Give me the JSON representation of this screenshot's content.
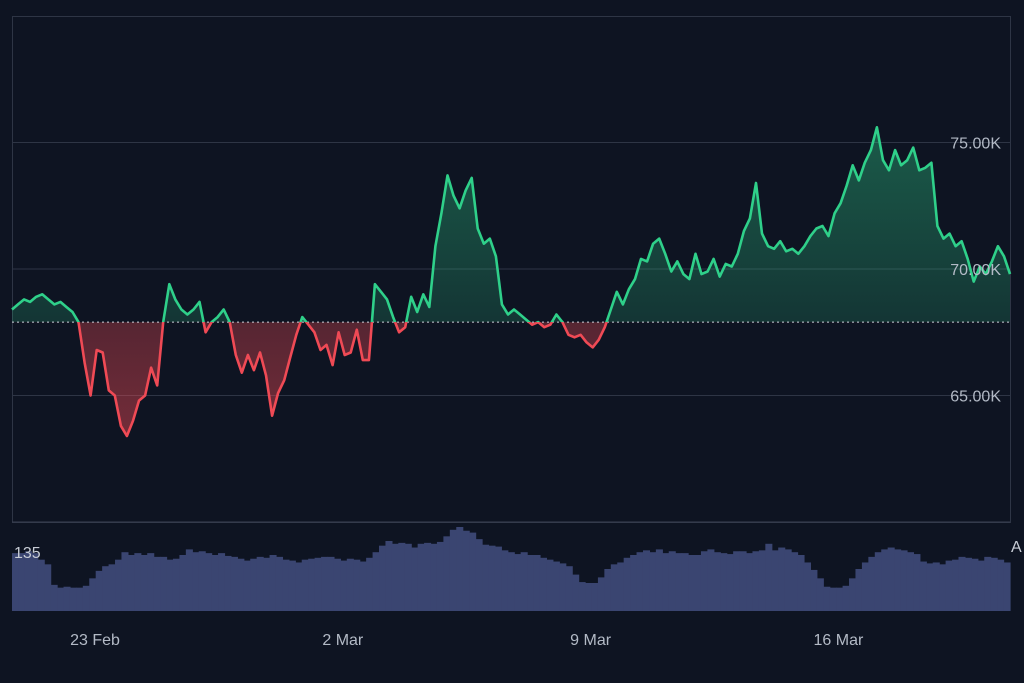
{
  "chart_data": {
    "type": "area",
    "title": "",
    "xlabel": "",
    "ylabel": "",
    "x_tick_labels": [
      "23 Feb",
      "2 Mar",
      "9 Mar",
      "16 Mar"
    ],
    "y_tick_labels": [
      "75.00K",
      "70.00K",
      "65.00K"
    ],
    "y_ticks": [
      75000,
      70000,
      65000
    ],
    "ylim": [
      60000,
      80000
    ],
    "baseline": 67900,
    "grid": true,
    "colors": {
      "background": "#0e1422",
      "up_line": "#2fd08a",
      "up_fill": "#2fd08a",
      "down_line": "#ef4a55",
      "down_fill": "#ef4a55",
      "volume": "#3a4571",
      "grid": "#2e3545",
      "baseline": "#cfd3dc"
    },
    "price_series": {
      "name": "",
      "points": [
        [
          "21 Feb",
          68400
        ],
        [
          "21 Feb",
          68600
        ],
        [
          "21 Feb",
          68800
        ],
        [
          "21 Feb",
          68700
        ],
        [
          "21 Feb",
          68900
        ],
        [
          "21 Feb",
          69000
        ],
        [
          "22 Feb",
          68800
        ],
        [
          "22 Feb",
          68600
        ],
        [
          "22 Feb",
          68700
        ],
        [
          "22 Feb",
          68500
        ],
        [
          "22 Feb",
          68300
        ],
        [
          "22 Feb",
          67900
        ],
        [
          "22 Feb",
          66300
        ],
        [
          "23 Feb",
          65000
        ],
        [
          "23 Feb",
          66800
        ],
        [
          "23 Feb",
          66700
        ],
        [
          "23 Feb",
          65200
        ],
        [
          "23 Feb",
          65000
        ],
        [
          "24 Feb",
          63800
        ],
        [
          "24 Feb",
          63400
        ],
        [
          "24 Feb",
          64000
        ],
        [
          "24 Feb",
          64800
        ],
        [
          "24 Feb",
          65000
        ],
        [
          "25 Feb",
          66100
        ],
        [
          "25 Feb",
          65400
        ],
        [
          "25 Feb",
          67900
        ],
        [
          "25 Feb",
          69400
        ],
        [
          "25 Feb",
          68800
        ],
        [
          "26 Feb",
          68400
        ],
        [
          "26 Feb",
          68200
        ],
        [
          "26 Feb",
          68400
        ],
        [
          "26 Feb",
          68700
        ],
        [
          "26 Feb",
          67500
        ],
        [
          "27 Feb",
          67900
        ],
        [
          "27 Feb",
          68100
        ],
        [
          "27 Feb",
          68400
        ],
        [
          "27 Feb",
          67900
        ],
        [
          "27 Feb",
          66600
        ],
        [
          "27 Feb",
          65900
        ],
        [
          "28 Feb",
          66600
        ],
        [
          "28 Feb",
          66000
        ],
        [
          "28 Feb",
          66700
        ],
        [
          "28 Feb",
          65800
        ],
        [
          "28 Feb",
          64200
        ],
        [
          "28 Feb",
          65100
        ],
        [
          "1 Mar",
          65600
        ],
        [
          "1 Mar",
          66500
        ],
        [
          "1 Mar",
          67400
        ],
        [
          "1 Mar",
          68100
        ],
        [
          "1 Mar",
          67800
        ],
        [
          "1 Mar",
          67500
        ],
        [
          "1 Mar",
          66800
        ],
        [
          "1 Mar",
          67000
        ],
        [
          "2 Mar",
          66200
        ],
        [
          "2 Mar",
          67500
        ],
        [
          "2 Mar",
          66600
        ],
        [
          "2 Mar",
          66700
        ],
        [
          "2 Mar",
          67600
        ],
        [
          "2 Mar",
          66400
        ],
        [
          "2 Mar",
          66400
        ],
        [
          "3 Mar",
          69400
        ],
        [
          "3 Mar",
          69100
        ],
        [
          "3 Mar",
          68800
        ],
        [
          "3 Mar",
          68100
        ],
        [
          "3 Mar",
          67500
        ],
        [
          "3 Mar",
          67700
        ],
        [
          "4 Mar",
          68900
        ],
        [
          "4 Mar",
          68300
        ],
        [
          "4 Mar",
          69000
        ],
        [
          "4 Mar",
          68500
        ],
        [
          "4 Mar",
          70900
        ],
        [
          "4 Mar",
          72200
        ],
        [
          "5 Mar",
          73700
        ],
        [
          "5 Mar",
          72900
        ],
        [
          "5 Mar",
          72400
        ],
        [
          "5 Mar",
          73100
        ],
        [
          "5 Mar",
          73600
        ],
        [
          "5 Mar",
          71600
        ],
        [
          "6 Mar",
          71000
        ],
        [
          "6 Mar",
          71200
        ],
        [
          "6 Mar",
          70500
        ],
        [
          "6 Mar",
          68600
        ],
        [
          "6 Mar",
          68200
        ],
        [
          "7 Mar",
          68400
        ],
        [
          "7 Mar",
          68200
        ],
        [
          "7 Mar",
          68000
        ],
        [
          "7 Mar",
          67800
        ],
        [
          "7 Mar",
          67900
        ],
        [
          "7 Mar",
          67700
        ],
        [
          "8 Mar",
          67800
        ],
        [
          "8 Mar",
          68200
        ],
        [
          "8 Mar",
          67900
        ],
        [
          "8 Mar",
          67400
        ],
        [
          "8 Mar",
          67300
        ],
        [
          "8 Mar",
          67400
        ],
        [
          "9 Mar",
          67100
        ],
        [
          "9 Mar",
          66900
        ],
        [
          "9 Mar",
          67200
        ],
        [
          "9 Mar",
          67700
        ],
        [
          "9 Mar",
          68400
        ],
        [
          "9 Mar",
          69100
        ],
        [
          "10 Mar",
          68600
        ],
        [
          "10 Mar",
          69200
        ],
        [
          "10 Mar",
          69600
        ],
        [
          "10 Mar",
          70400
        ],
        [
          "10 Mar",
          70300
        ],
        [
          "10 Mar",
          71000
        ],
        [
          "11 Mar",
          71200
        ],
        [
          "11 Mar",
          70600
        ],
        [
          "11 Mar",
          69900
        ],
        [
          "11 Mar",
          70300
        ],
        [
          "11 Mar",
          69800
        ],
        [
          "11 Mar",
          69600
        ],
        [
          "12 Mar",
          70600
        ],
        [
          "12 Mar",
          69800
        ],
        [
          "12 Mar",
          69900
        ],
        [
          "12 Mar",
          70400
        ],
        [
          "12 Mar",
          69700
        ],
        [
          "13 Mar",
          70200
        ],
        [
          "13 Mar",
          70100
        ],
        [
          "13 Mar",
          70600
        ],
        [
          "13 Mar",
          71500
        ],
        [
          "13 Mar",
          72000
        ],
        [
          "13 Mar",
          73400
        ],
        [
          "14 Mar",
          71400
        ],
        [
          "14 Mar",
          70900
        ],
        [
          "14 Mar",
          70800
        ],
        [
          "14 Mar",
          71100
        ],
        [
          "14 Mar",
          70700
        ],
        [
          "15 Mar",
          70800
        ],
        [
          "15 Mar",
          70600
        ],
        [
          "15 Mar",
          70900
        ],
        [
          "15 Mar",
          71300
        ],
        [
          "15 Mar",
          71600
        ],
        [
          "15 Mar",
          71700
        ],
        [
          "15 Mar",
          71300
        ],
        [
          "15 Mar",
          72200
        ],
        [
          "16 Mar",
          72600
        ],
        [
          "16 Mar",
          73300
        ],
        [
          "16 Mar",
          74100
        ],
        [
          "16 Mar",
          73500
        ],
        [
          "16 Mar",
          74200
        ],
        [
          "17 Mar",
          74700
        ],
        [
          "17 Mar",
          75600
        ],
        [
          "17 Mar",
          74300
        ],
        [
          "17 Mar",
          73900
        ],
        [
          "17 Mar",
          74700
        ],
        [
          "17 Mar",
          74100
        ],
        [
          "18 Mar",
          74300
        ],
        [
          "18 Mar",
          74800
        ],
        [
          "18 Mar",
          73900
        ],
        [
          "18 Mar",
          74000
        ],
        [
          "18 Mar",
          74200
        ],
        [
          "18 Mar",
          71700
        ],
        [
          "19 Mar",
          71200
        ],
        [
          "19 Mar",
          71400
        ],
        [
          "19 Mar",
          70900
        ],
        [
          "19 Mar",
          71100
        ],
        [
          "19 Mar",
          70400
        ],
        [
          "20 Mar",
          69500
        ],
        [
          "20 Mar",
          70100
        ],
        [
          "20 Mar",
          69800
        ],
        [
          "20 Mar",
          70300
        ],
        [
          "20 Mar",
          70900
        ],
        [
          "20 Mar",
          70500
        ],
        [
          "20 Mar",
          69800
        ]
      ]
    },
    "volume_series": {
      "label": "135",
      "edge_label": "A",
      "values": [
        62,
        62,
        64,
        62,
        55,
        50,
        28,
        25,
        26,
        25,
        25,
        27,
        35,
        43,
        48,
        50,
        55,
        63,
        60,
        62,
        60,
        62,
        58,
        58,
        55,
        56,
        60,
        66,
        63,
        64,
        62,
        60,
        62,
        59,
        58,
        56,
        54,
        56,
        58,
        57,
        60,
        58,
        55,
        54,
        52,
        55,
        56,
        57,
        58,
        58,
        56,
        54,
        56,
        55,
        53,
        57,
        63,
        70,
        75,
        72,
        73,
        72,
        68,
        72,
        73,
        72,
        74,
        80,
        87,
        90,
        86,
        84,
        77,
        71,
        70,
        69,
        65,
        63,
        61,
        63,
        60,
        60,
        57,
        55,
        53,
        51,
        48,
        39,
        31,
        30,
        30,
        36,
        45,
        50,
        52,
        57,
        60,
        63,
        65,
        63,
        66,
        62,
        64,
        62,
        62,
        60,
        60,
        64,
        66,
        63,
        62,
        61,
        64,
        64,
        62,
        64,
        65,
        72,
        65,
        68,
        66,
        63,
        60,
        52,
        44,
        35,
        26,
        25,
        25,
        27,
        35,
        45,
        52,
        58,
        63,
        66,
        68,
        66,
        65,
        63,
        61,
        53,
        51,
        52,
        50,
        54,
        55,
        58,
        57,
        56,
        54,
        58,
        57,
        55,
        52
      ]
    }
  }
}
